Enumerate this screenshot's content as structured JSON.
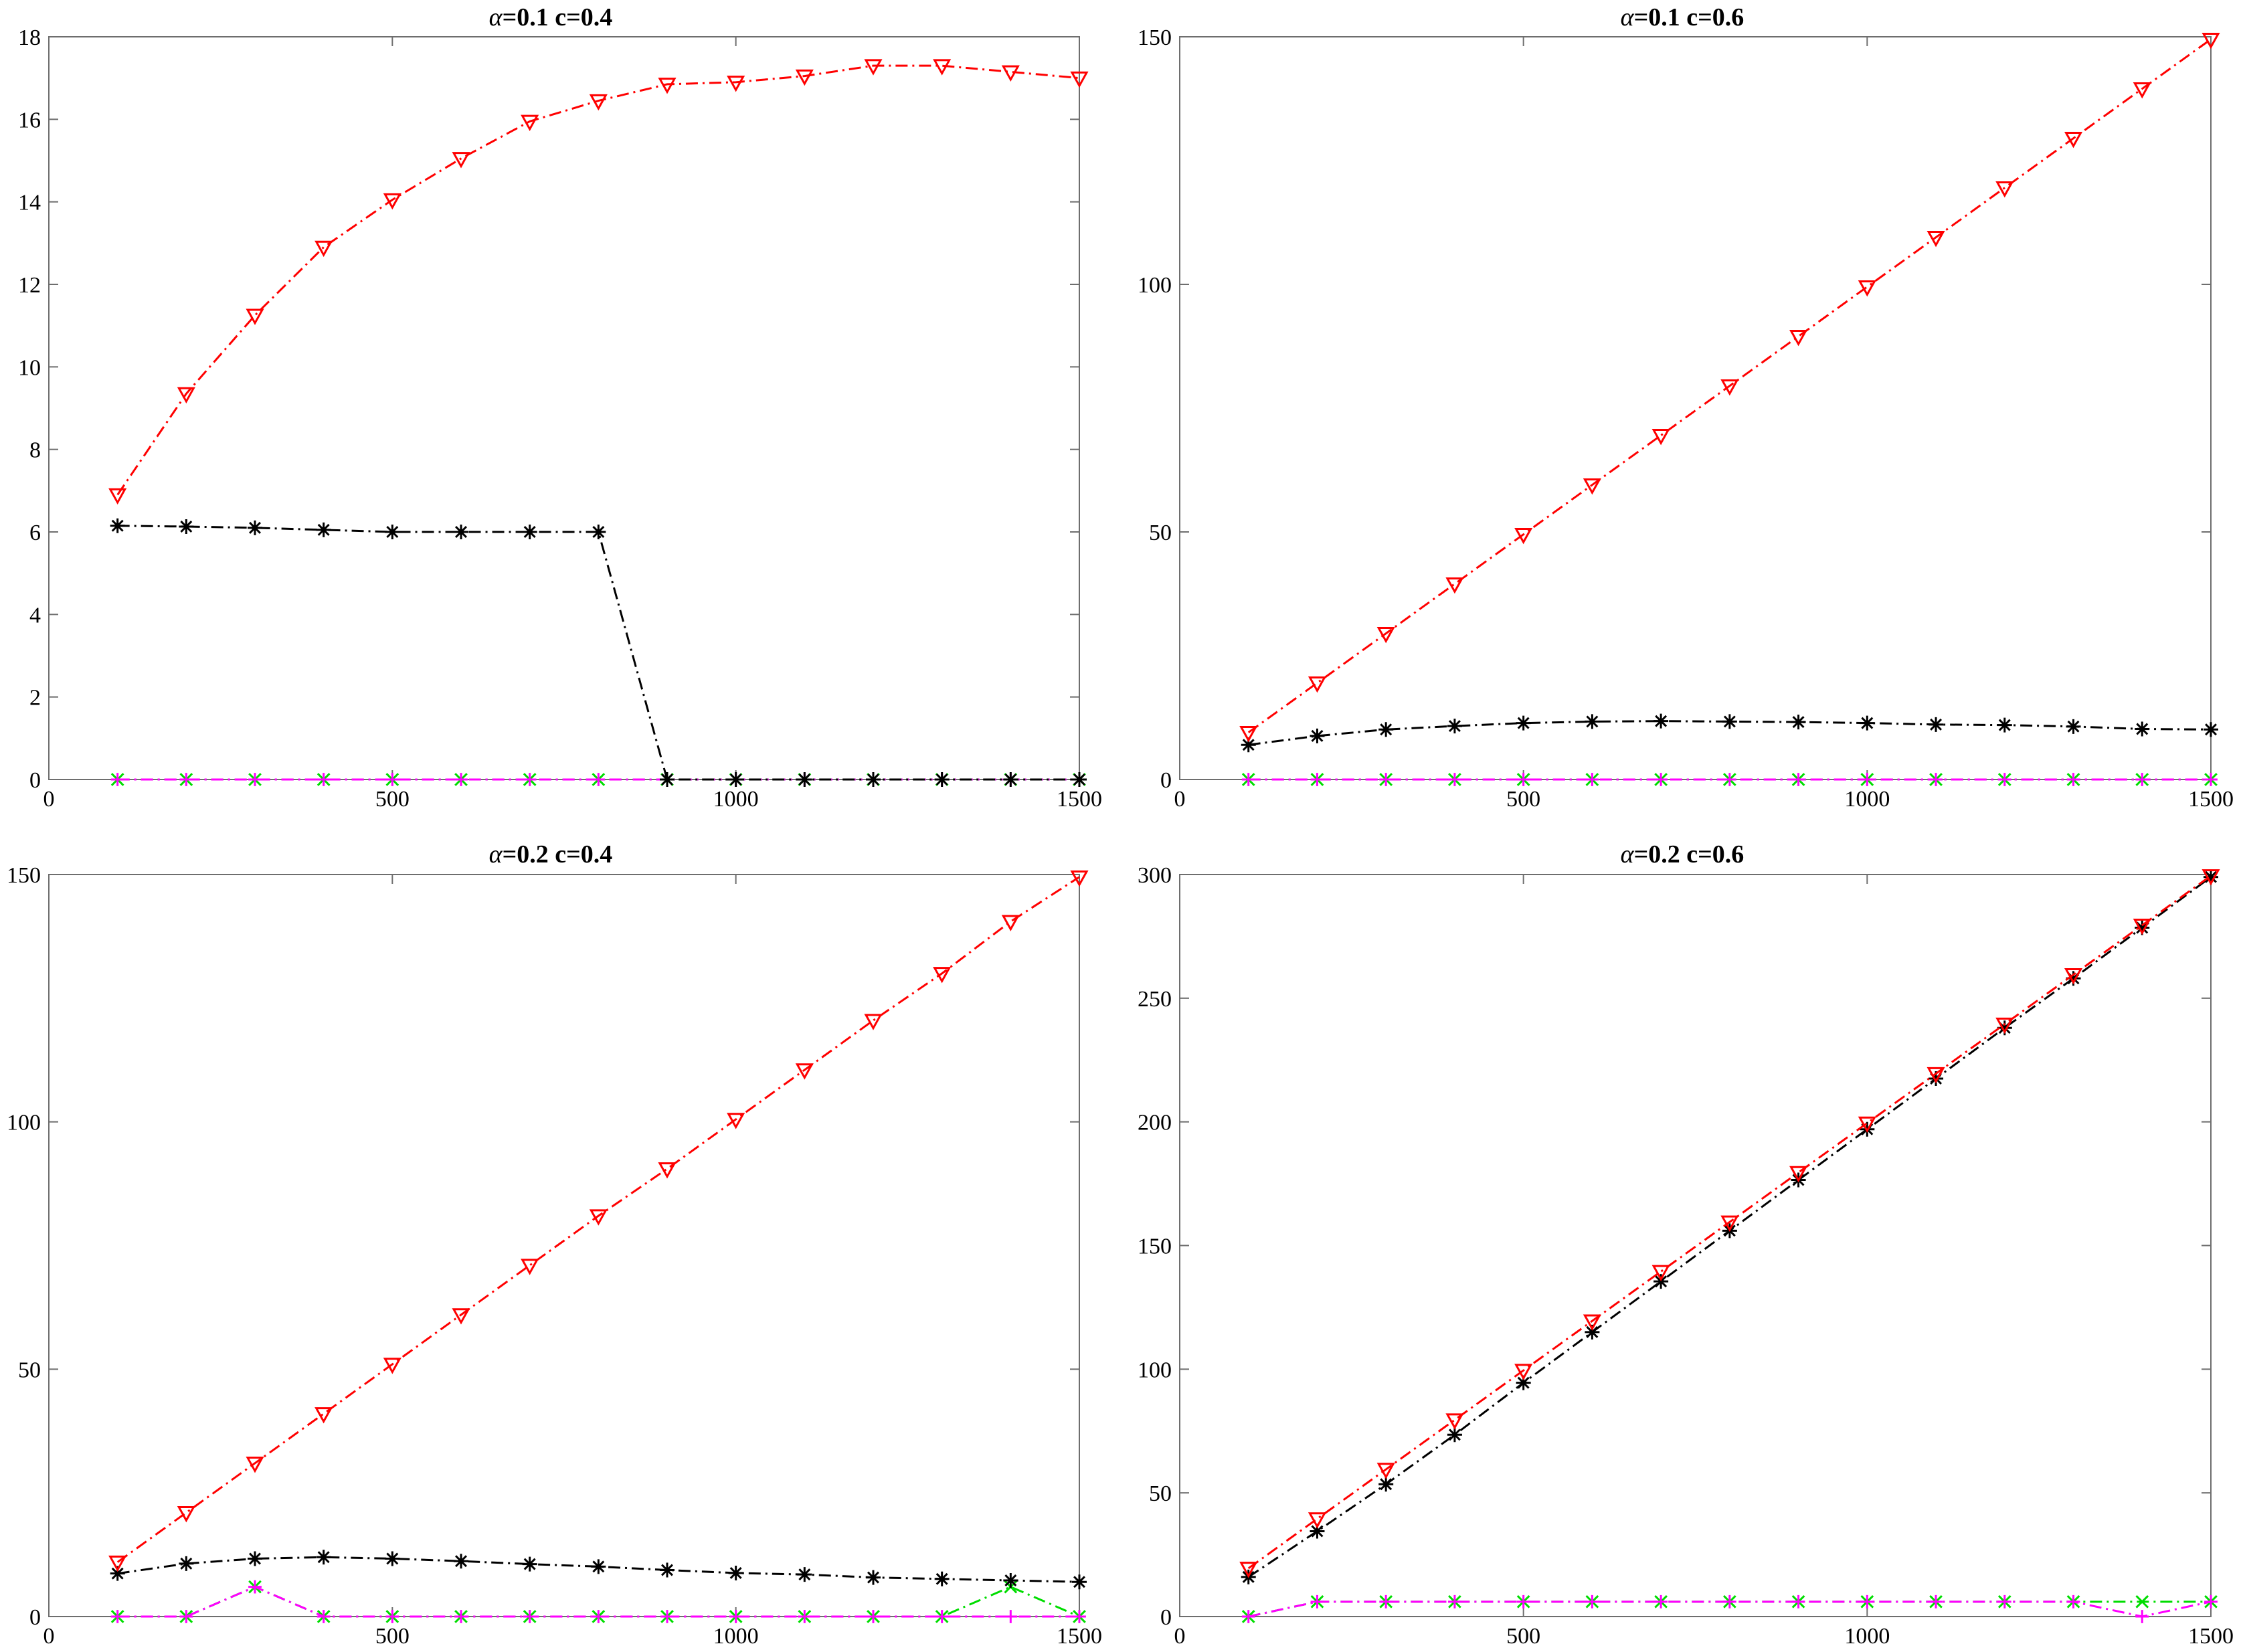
{
  "chart_data": [
    {
      "type": "line",
      "title_symbol": "α",
      "title_text": "=0.1 c=0.4",
      "xlabel": "",
      "ylabel": "",
      "xlim": [
        0,
        1500
      ],
      "ylim": [
        0,
        18
      ],
      "xticks": [
        0,
        500,
        1000,
        1500
      ],
      "yticks": [
        0,
        2,
        4,
        6,
        8,
        10,
        12,
        14,
        16,
        18
      ],
      "x": [
        100,
        200,
        300,
        400,
        500,
        600,
        700,
        800,
        900,
        1000,
        1100,
        1200,
        1300,
        1400,
        1500
      ],
      "series": [
        {
          "color": "#ff0000",
          "marker": "triangle-down",
          "values": [
            6.9,
            9.35,
            11.25,
            12.9,
            14.05,
            15.05,
            15.95,
            16.45,
            16.85,
            16.9,
            17.05,
            17.3,
            17.3,
            17.15,
            17.0
          ]
        },
        {
          "color": "#000000",
          "marker": "asterisk",
          "values": [
            6.15,
            6.13,
            6.1,
            6.05,
            6.0,
            6.0,
            6.0,
            6.0,
            0,
            0,
            0,
            0,
            0,
            0,
            0
          ]
        },
        {
          "color": "#00dd00",
          "marker": "x",
          "values": [
            0,
            0,
            0,
            0,
            0,
            0,
            0,
            0,
            0,
            0,
            0,
            0,
            0,
            0,
            0
          ]
        },
        {
          "color": "#ff00ff",
          "marker": "plus",
          "values": [
            0,
            0,
            0,
            0,
            0,
            0,
            0,
            0,
            0,
            0,
            0,
            0,
            0,
            0,
            0
          ]
        }
      ]
    },
    {
      "type": "line",
      "title_symbol": "α",
      "title_text": "=0.1 c=0.6",
      "xlabel": "",
      "ylabel": "",
      "xlim": [
        0,
        1500
      ],
      "ylim": [
        0,
        150
      ],
      "xticks": [
        0,
        500,
        1000,
        1500
      ],
      "yticks": [
        0,
        50,
        100,
        150
      ],
      "x": [
        100,
        200,
        300,
        400,
        500,
        600,
        700,
        800,
        900,
        1000,
        1100,
        1200,
        1300,
        1400,
        1500
      ],
      "series": [
        {
          "color": "#ff0000",
          "marker": "triangle-down",
          "values": [
            9.5,
            19.5,
            29.5,
            39.5,
            49.5,
            59.5,
            69.5,
            79.5,
            89.5,
            99.5,
            109.5,
            119.5,
            129.5,
            139.5,
            149.5
          ]
        },
        {
          "color": "#000000",
          "marker": "asterisk",
          "values": [
            7.0,
            8.8,
            10.1,
            10.8,
            11.4,
            11.7,
            11.8,
            11.7,
            11.6,
            11.4,
            11.1,
            11.0,
            10.7,
            10.2,
            10.1
          ]
        },
        {
          "color": "#00dd00",
          "marker": "x",
          "values": [
            0,
            0,
            0,
            0,
            0,
            0,
            0,
            0,
            0,
            0,
            0,
            0,
            0,
            0,
            0
          ]
        },
        {
          "color": "#ff00ff",
          "marker": "plus",
          "values": [
            0,
            0,
            0,
            0,
            0,
            0,
            0,
            0,
            0,
            0,
            0,
            0,
            0,
            0,
            0
          ]
        }
      ]
    },
    {
      "type": "line",
      "title_symbol": "α",
      "title_text": "=0.2 c=0.4",
      "xlabel": "",
      "ylabel": "",
      "xlim": [
        0,
        1500
      ],
      "ylim": [
        0,
        150
      ],
      "xticks": [
        0,
        500,
        1000,
        1500
      ],
      "yticks": [
        0,
        50,
        100,
        150
      ],
      "x": [
        100,
        200,
        300,
        400,
        500,
        600,
        700,
        800,
        900,
        1000,
        1100,
        1200,
        1300,
        1400,
        1500
      ],
      "series": [
        {
          "color": "#ff0000",
          "marker": "triangle-down",
          "values": [
            11.0,
            21.0,
            31.0,
            41.0,
            51.0,
            61.0,
            71.0,
            81.0,
            90.5,
            100.5,
            110.5,
            120.5,
            130.0,
            140.5,
            149.5
          ]
        },
        {
          "color": "#000000",
          "marker": "asterisk",
          "values": [
            8.7,
            10.7,
            11.7,
            12.0,
            11.7,
            11.2,
            10.6,
            10.1,
            9.4,
            8.8,
            8.5,
            7.9,
            7.6,
            7.3,
            7.0
          ]
        },
        {
          "color": "#00dd00",
          "marker": "x",
          "values": [
            0,
            0,
            6.0,
            0,
            0,
            0,
            0,
            0,
            0,
            0,
            0,
            0,
            0,
            6.0,
            0
          ]
        },
        {
          "color": "#ff00ff",
          "marker": "plus",
          "values": [
            0,
            0,
            6.0,
            0,
            0,
            0,
            0,
            0,
            0,
            0,
            0,
            0,
            0,
            0,
            0
          ]
        }
      ]
    },
    {
      "type": "line",
      "title_symbol": "α",
      "title_text": "=0.2 c=0.6",
      "xlabel": "",
      "ylabel": "",
      "xlim": [
        0,
        1500
      ],
      "ylim": [
        0,
        300
      ],
      "xticks": [
        0,
        500,
        1000,
        1500
      ],
      "yticks": [
        0,
        50,
        100,
        150,
        200,
        250,
        300
      ],
      "x": [
        100,
        200,
        300,
        400,
        500,
        600,
        700,
        800,
        900,
        1000,
        1100,
        1200,
        1300,
        1400,
        1500
      ],
      "series": [
        {
          "color": "#ff0000",
          "marker": "triangle-down",
          "values": [
            19.5,
            39.5,
            59.5,
            79.5,
            99.5,
            119.5,
            139.5,
            159.5,
            179.5,
            199.5,
            219.5,
            239.5,
            259.5,
            279.5,
            299.5
          ]
        },
        {
          "color": "#000000",
          "marker": "asterisk",
          "values": [
            16.0,
            34.5,
            53.5,
            73.5,
            94.5,
            115.0,
            135.5,
            156.0,
            176.5,
            197.0,
            217.5,
            238.0,
            258.0,
            278.5,
            299.0
          ]
        },
        {
          "color": "#00dd00",
          "marker": "x",
          "values": [
            0,
            6.0,
            6.0,
            6.0,
            6.0,
            6.0,
            6.0,
            6.0,
            6.0,
            6.0,
            6.0,
            6.0,
            6.0,
            6.0,
            6.0
          ]
        },
        {
          "color": "#ff00ff",
          "marker": "plus",
          "values": [
            0,
            6.0,
            6.0,
            6.0,
            6.0,
            6.0,
            6.0,
            6.0,
            6.0,
            6.0,
            6.0,
            6.0,
            6.0,
            0,
            6.0
          ]
        }
      ]
    }
  ]
}
